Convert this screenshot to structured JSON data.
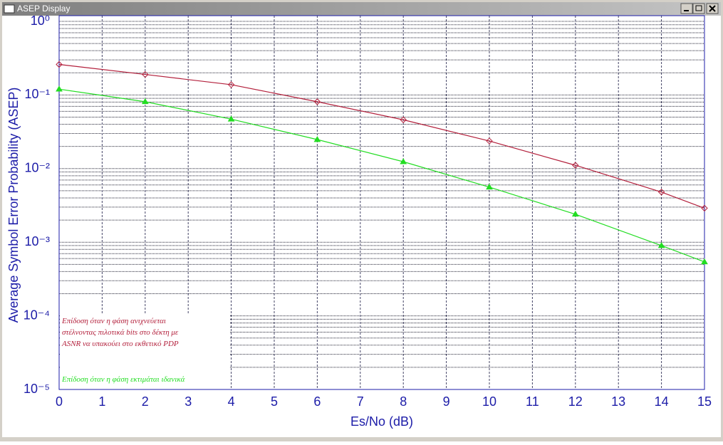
{
  "window": {
    "title": "ASEP Display"
  },
  "chart_data": {
    "type": "line",
    "x_label": "Es/No (dB)",
    "y_label": "Average Symbol Error Probability (ASEP)",
    "x": [
      0,
      2,
      4,
      6,
      8,
      10,
      12,
      14,
      15
    ],
    "series": [
      {
        "name": "Επίδοση  όταν η φάση ανιχνεύεται\nστέλνοντας πιλοτικά bits  στο δέκτη με\nASNR να υπακούει στο εκθετικό PDP",
        "color": "#b3203c",
        "marker": "diamond",
        "values": [
          0.26,
          0.19,
          0.138,
          0.081,
          0.046,
          0.0237,
          0.0111,
          0.0048,
          0.0029
        ]
      },
      {
        "name": "Επίδοση όταν η φάση εκτιμάται ιδανικά",
        "color": "#22dd22",
        "marker": "triangle",
        "values": [
          0.12,
          0.081,
          0.047,
          0.0248,
          0.0124,
          0.0056,
          0.0024,
          0.0009,
          0.00054
        ]
      }
    ],
    "xlim": [
      0,
      15
    ],
    "xticks": [
      0,
      1,
      2,
      3,
      4,
      5,
      6,
      7,
      8,
      9,
      10,
      11,
      12,
      13,
      14,
      15
    ],
    "ylim": [
      1e-05,
      1
    ],
    "ylog": true,
    "yticks": [
      {
        "value": 1,
        "label": "10⁰"
      },
      {
        "value": 0.1,
        "label": "10⁻¹"
      },
      {
        "value": 0.01,
        "label": "10⁻²"
      },
      {
        "value": 0.001,
        "label": "10⁻³"
      },
      {
        "value": 0.0001,
        "label": "10⁻⁴"
      },
      {
        "value": 1e-05,
        "label": "10⁻⁵"
      }
    ],
    "grid": true,
    "legend": "lower left"
  }
}
